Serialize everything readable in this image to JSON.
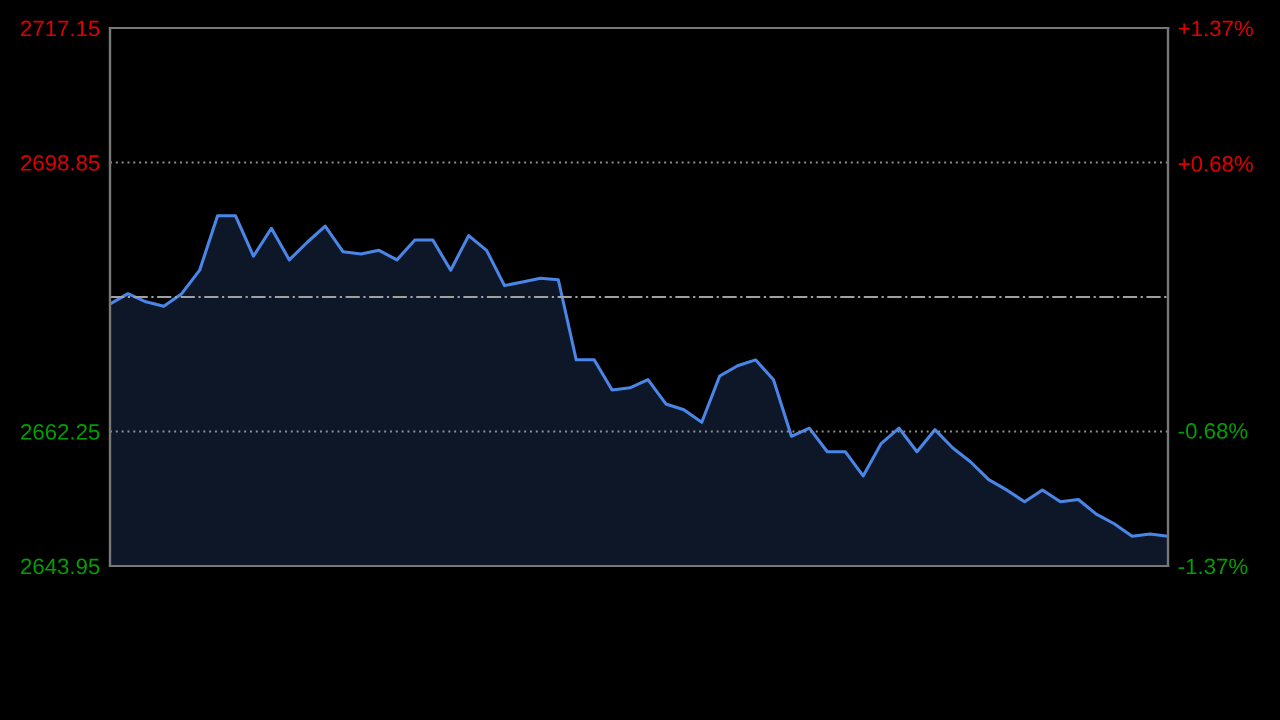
{
  "chart_data": {
    "type": "area",
    "categories": [
      null,
      null,
      null,
      null,
      null,
      null,
      null,
      null,
      null,
      null,
      null,
      null,
      null,
      null,
      null,
      null,
      null,
      null,
      null,
      null,
      null,
      null,
      null,
      null,
      null,
      null,
      null,
      null,
      null,
      null,
      null,
      null,
      null,
      null,
      null,
      null,
      null,
      null,
      null,
      null,
      null,
      null,
      null,
      null,
      null,
      null,
      null,
      null,
      null,
      null,
      null,
      null,
      null,
      null,
      null,
      null,
      null,
      null,
      null,
      null
    ],
    "series": [
      {
        "color": "#4a86e8",
        "values": [
          2679.6,
          2681.0,
          2679.9,
          2679.3,
          2681.0,
          2684.2,
          2691.6,
          2691.6,
          2686.1,
          2689.9,
          2685.6,
          2688.0,
          2690.2,
          2686.7,
          2686.4,
          2686.9,
          2685.6,
          2688.3,
          2688.3,
          2684.2,
          2688.9,
          2686.9,
          2682.1,
          2682.6,
          2683.1,
          2682.9,
          2672.0,
          2672.0,
          2667.9,
          2668.2,
          2669.3,
          2666.0,
          2665.2,
          2663.5,
          2669.8,
          2671.2,
          2672.0,
          2669.3,
          2661.6,
          2662.7,
          2659.5,
          2659.5,
          2656.2,
          2660.6,
          2662.7,
          2659.5,
          2662.5,
          2660.0,
          2658.1,
          2655.7,
          2654.3,
          2652.7,
          2654.3,
          2652.7,
          2653.0,
          2651.0,
          2649.7,
          2648.0,
          2648.3,
          2648.0
        ]
      }
    ],
    "ylim": [
      2643.95,
      2717.15
    ],
    "yticks": [
      2643.95,
      2662.25,
      2698.85,
      2717.15
    ],
    "y2lim": [
      -1.37,
      1.37
    ],
    "y2ticks": [
      {
        "value": -1.37,
        "label": "-1.37%"
      },
      {
        "value": -0.68,
        "label": "-0.68%"
      },
      {
        "value": 0.68,
        "label": "+0.68%"
      },
      {
        "value": 1.37,
        "label": "+1.37%"
      }
    ],
    "ref_lines": [
      {
        "axis": "y",
        "value": 2680.55,
        "color": "#a0a0a0",
        "line_style": "dashdot"
      }
    ],
    "grid": "y",
    "tick_labels": "y"
  }
}
